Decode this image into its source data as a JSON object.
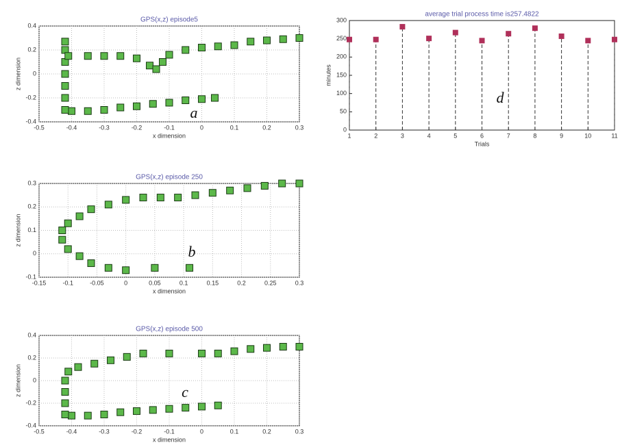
{
  "chart_data": [
    {
      "type": "scatter",
      "title": "GPS(x,z) episode5",
      "x_label": "x dimension",
      "y_label": "z dimension",
      "annotation": "a",
      "marker": "square",
      "color": "#5cb84a",
      "grid": true,
      "xlim": [
        -0.5,
        0.3
      ],
      "xticks": [
        -0.5,
        -0.4,
        -0.3,
        -0.2,
        -0.1,
        0,
        0.1,
        0.2,
        0.3
      ],
      "ylim": [
        -0.4,
        0.4
      ],
      "yticks": [
        -0.4,
        -0.2,
        0,
        0.2,
        0.4
      ],
      "x": [
        0.04,
        0,
        -0.05,
        -0.1,
        -0.15,
        -0.2,
        -0.25,
        -0.3,
        -0.35,
        -0.4,
        -0.42,
        -0.42,
        -0.42,
        -0.42,
        -0.42,
        -0.42,
        -0.42,
        -0.41,
        -0.35,
        -0.3,
        -0.25,
        -0.2,
        -0.16,
        -0.14,
        -0.12,
        -0.1,
        -0.05,
        0,
        0.05,
        0.1,
        0.15,
        0.2,
        0.25,
        0.3
      ],
      "values": [
        -0.2,
        -0.21,
        -0.22,
        -0.24,
        -0.25,
        -0.27,
        -0.28,
        -0.3,
        -0.31,
        -0.31,
        -0.3,
        -0.2,
        -0.1,
        0,
        0.1,
        0.2,
        0.27,
        0.15,
        0.15,
        0.15,
        0.15,
        0.13,
        0.07,
        0.04,
        0.1,
        0.16,
        0.2,
        0.22,
        0.23,
        0.24,
        0.27,
        0.28,
        0.29,
        0.3
      ]
    },
    {
      "type": "scatter",
      "title": "GPS(x,z) episode 250",
      "x_label": "x dimension",
      "y_label": "z dimension",
      "annotation": "b",
      "marker": "square",
      "color": "#5cb84a",
      "grid": true,
      "xlim": [
        -0.15,
        0.3
      ],
      "xticks": [
        -0.15,
        -0.1,
        -0.05,
        0,
        0.05,
        0.1,
        0.15,
        0.2,
        0.25,
        0.3
      ],
      "ylim": [
        -0.1,
        0.3
      ],
      "yticks": [
        -0.1,
        0,
        0.1,
        0.2,
        0.3
      ],
      "x": [
        0.11,
        0.05,
        0,
        -0.03,
        -0.06,
        -0.08,
        -0.1,
        -0.11,
        -0.11,
        -0.1,
        -0.08,
        -0.06,
        -0.03,
        0,
        0.03,
        0.06,
        0.09,
        0.12,
        0.15,
        0.18,
        0.21,
        0.24,
        0.27,
        0.3
      ],
      "values": [
        -0.06,
        -0.06,
        -0.07,
        -0.06,
        -0.04,
        -0.01,
        0.02,
        0.06,
        0.1,
        0.13,
        0.16,
        0.19,
        0.21,
        0.23,
        0.24,
        0.24,
        0.24,
        0.25,
        0.26,
        0.27,
        0.28,
        0.29,
        0.3,
        0.3
      ]
    },
    {
      "type": "scatter",
      "title": "GPS(x,z) episode 500",
      "x_label": "x dimension",
      "y_label": "z dimension",
      "annotation": "c",
      "marker": "square",
      "color": "#5cb84a",
      "grid": true,
      "xlim": [
        -0.5,
        0.3
      ],
      "xticks": [
        -0.5,
        -0.4,
        -0.3,
        -0.2,
        -0.1,
        0,
        0.1,
        0.2,
        0.3
      ],
      "ylim": [
        -0.4,
        0.4
      ],
      "yticks": [
        -0.4,
        -0.2,
        0,
        0.2,
        0.4
      ],
      "x": [
        0.05,
        0,
        -0.05,
        -0.1,
        -0.15,
        -0.2,
        -0.25,
        -0.3,
        -0.35,
        -0.4,
        -0.42,
        -0.42,
        -0.42,
        -0.42,
        -0.41,
        -0.38,
        -0.33,
        -0.28,
        -0.23,
        -0.18,
        -0.1,
        0,
        0.05,
        0.1,
        0.15,
        0.2,
        0.25,
        0.3
      ],
      "values": [
        -0.22,
        -0.23,
        -0.24,
        -0.25,
        -0.26,
        -0.27,
        -0.28,
        -0.3,
        -0.31,
        -0.31,
        -0.3,
        -0.2,
        -0.1,
        0,
        0.08,
        0.12,
        0.15,
        0.18,
        0.21,
        0.24,
        0.24,
        0.24,
        0.24,
        0.26,
        0.28,
        0.29,
        0.3,
        0.3
      ]
    },
    {
      "type": "stem",
      "title": "average trial process time is257.4822",
      "x_label": "Trials",
      "y_label": "minutes",
      "annotation": "d",
      "color": "#b0305a",
      "grid": false,
      "xlim": [
        1,
        11
      ],
      "xticks": [
        1,
        2,
        3,
        4,
        5,
        6,
        7,
        8,
        9,
        10,
        11
      ],
      "ylim": [
        0,
        300
      ],
      "yticks": [
        0,
        50,
        100,
        150,
        200,
        250,
        300
      ],
      "x": [
        1,
        2,
        3,
        4,
        5,
        6,
        7,
        8,
        9,
        10,
        11
      ],
      "values": [
        248,
        248,
        283,
        251,
        267,
        245,
        264,
        279,
        257,
        245,
        248
      ]
    }
  ]
}
